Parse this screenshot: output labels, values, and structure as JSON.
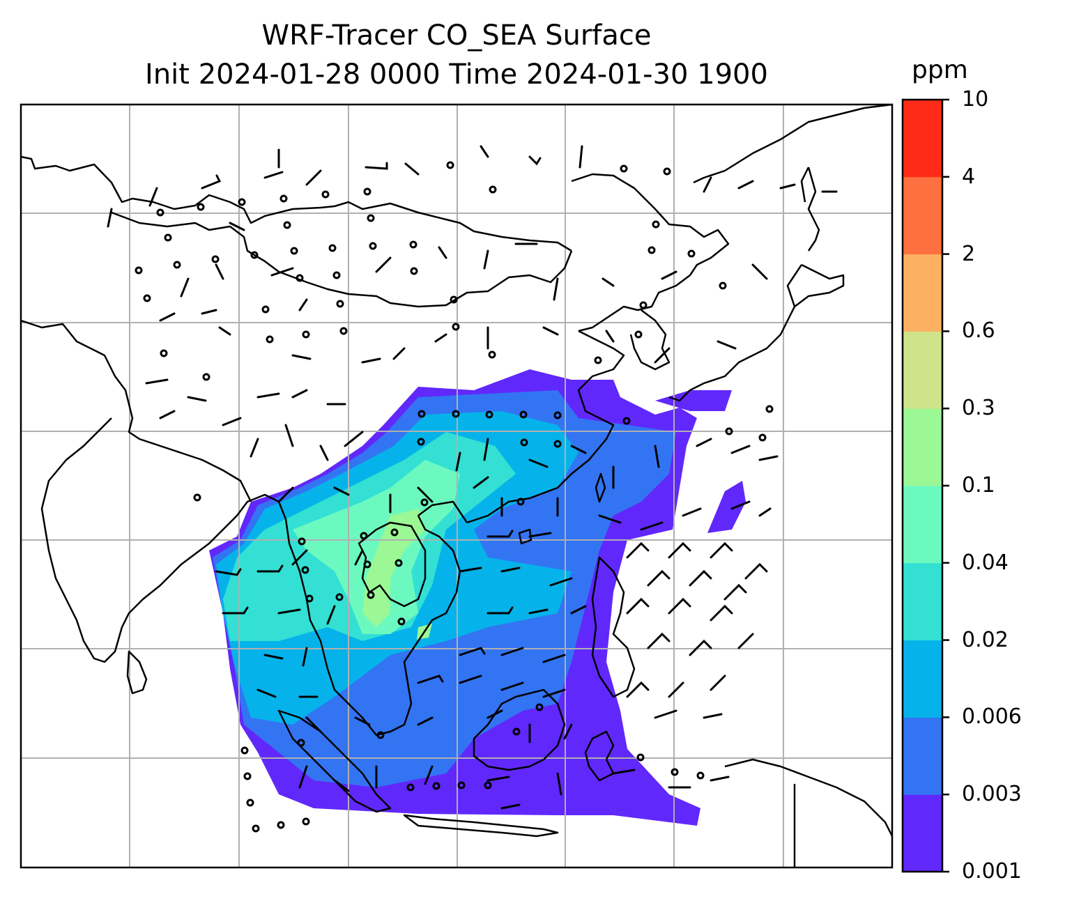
{
  "title": {
    "line1": "WRF-Tracer CO_SEA Surface",
    "line2": "Init 2024-01-28 0000 Time 2024-01-30 1900"
  },
  "colorbar": {
    "unit": "ppm",
    "levels": [
      "0.001",
      "0.003",
      "0.006",
      "0.02",
      "0.04",
      "0.1",
      "0.3",
      "0.6",
      "2",
      "4",
      "10"
    ],
    "colors": [
      "#6128fb",
      "#3374f3",
      "#05b3ea",
      "#33e0d3",
      "#6cf9c0",
      "#9bf895",
      "#cfe38a",
      "#fcb062",
      "#fe7040",
      "#fe2b18"
    ]
  },
  "map": {
    "gridlines": true,
    "coastlines": true,
    "wind_barbs": true,
    "field": "CO_SEA surface tracer concentration"
  }
}
